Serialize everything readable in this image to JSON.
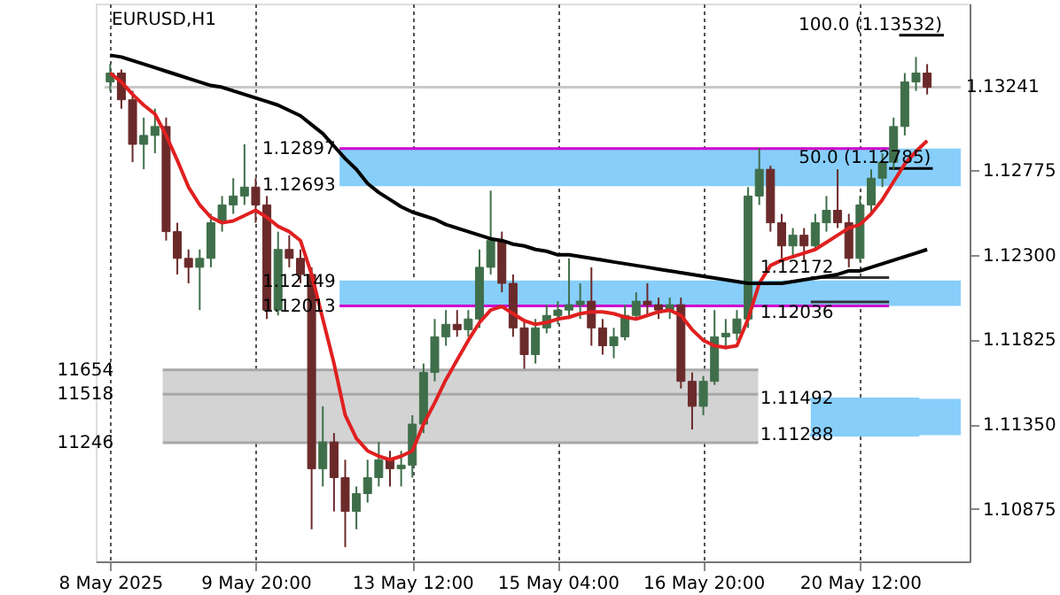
{
  "chart_data": {
    "type": "candlestick",
    "title": "EURUSD,H1",
    "categories": [
      "8 May 2025",
      null,
      null,
      null,
      null,
      null,
      null,
      null,
      null,
      null,
      null,
      null,
      null,
      "9 May 20:00",
      null,
      null,
      null,
      null,
      null,
      null,
      null,
      null,
      null,
      null,
      null,
      null,
      null,
      "13 May 12:00",
      null,
      null,
      null,
      null,
      null,
      null,
      null,
      null,
      null,
      null,
      null,
      null,
      "15 May 04:00",
      null,
      null,
      null,
      null,
      null,
      null,
      null,
      null,
      null,
      null,
      null,
      null,
      "16 May 20:00",
      null,
      null,
      null,
      null,
      null,
      null,
      null,
      null,
      null,
      null,
      null,
      null,
      null,
      "20 May 12:00",
      null,
      null,
      null,
      null,
      null,
      null
    ],
    "ylim": [
      1.1058,
      1.1371
    ],
    "yticks": [
      1.10875,
      {
        "value": 1.1135,
        "label": "1.11350"
      },
      1.11825,
      {
        "value": 1.123,
        "label": "1.12300"
      },
      1.12775
    ],
    "grid": "x",
    "marker": "none",
    "line_style": "solid",
    "colors": [
      "#3f6f4a",
      "#6b2a2a",
      "#6b2a2a",
      "#3f6f4a",
      "#3f6f4a",
      "#6b2a2a",
      "#6b2a2a",
      "#6b2a2a",
      "#3f6f4a",
      "#3f6f4a",
      "#3f6f4a",
      "#3f6f4a",
      "#3f6f4a",
      "#6b2a2a",
      "#6b2a2a",
      "#3f6f4a",
      "#6b2a2a",
      "#6b2a2a",
      "#6b2a2a",
      "#3f6f4a",
      "#6b2a2a",
      "#6b2a2a",
      "#3f6f4a",
      "#3f6f4a",
      "#3f6f4a",
      "#6b2a2a",
      "#3f6f4a",
      "#3f6f4a",
      "#3f6f4a",
      "#3f6f4a",
      "#3f6f4a",
      "#6b2a2a",
      "#3f6f4a",
      "#3f6f4a",
      "#3f6f4a",
      "#6b2a2a",
      "#6b2a2a",
      "#6b2a2a",
      "#3f6f4a",
      "#3f6f4a",
      "#3f6f4a",
      "#3f6f4a",
      "#3f6f4a",
      "#6b2a2a",
      "#6b2a2a",
      "#3f6f4a",
      "#3f6f4a",
      "#3f6f4a",
      "#6b2a2a",
      "#6b2a2a",
      "#3f6f4a",
      "#6b2a2a",
      "#6b2a2a",
      "#3f6f4a",
      "#3f6f4a",
      "#3f6f4a",
      "#3f6f4a",
      "#3f6f4a",
      "#3f6f4a",
      "#6b2a2a",
      "#6b2a2a",
      "#3f6f4a",
      "#6b2a2a",
      "#3f6f4a",
      "#3f6f4a",
      "#6b2a2a",
      "#6b2a2a",
      "#3f6f4a",
      "#3f6f4a",
      "#3f6f4a",
      "#3f6f4a",
      "#3f6f4a",
      "#3f6f4a",
      "#6b2a2a"
    ],
    "ohlc": [
      [
        1.1327,
        1.1337,
        1.1322,
        1.1332
      ],
      [
        1.1332,
        1.1334,
        1.1312,
        1.1317
      ],
      [
        1.1317,
        1.1322,
        1.1282,
        1.1292
      ],
      [
        1.1292,
        1.1307,
        1.1278,
        1.1297
      ],
      [
        1.1297,
        1.1312,
        1.1287,
        1.1302
      ],
      [
        1.1302,
        1.1307,
        1.1238,
        1.1243
      ],
      [
        1.1243,
        1.1248,
        1.1219,
        1.1228
      ],
      [
        1.1228,
        1.1233,
        1.1214,
        1.1223
      ],
      [
        1.1223,
        1.1233,
        1.1199,
        1.1228
      ],
      [
        1.1228,
        1.1253,
        1.1223,
        1.1248
      ],
      [
        1.1248,
        1.1263,
        1.1243,
        1.1258
      ],
      [
        1.1258,
        1.1273,
        1.1253,
        1.1263
      ],
      [
        1.1263,
        1.1292,
        1.1258,
        1.1268
      ],
      [
        1.1268,
        1.1273,
        1.1248,
        1.1258
      ],
      [
        1.1258,
        1.1263,
        1.1194,
        1.1199
      ],
      [
        1.1199,
        1.1243,
        1.1196,
        1.1233
      ],
      [
        1.1233,
        1.1241,
        1.1223,
        1.1228
      ],
      [
        1.1228,
        1.1233,
        1.1214,
        1.1219
      ],
      [
        1.1219,
        1.1223,
        1.1076,
        1.111
      ],
      [
        1.111,
        1.1145,
        1.11,
        1.1125
      ],
      [
        1.1125,
        1.113,
        1.1086,
        1.1105
      ],
      [
        1.1105,
        1.1115,
        1.1066,
        1.1086
      ],
      [
        1.1086,
        1.11,
        1.1076,
        1.1096
      ],
      [
        1.1096,
        1.1115,
        1.1091,
        1.1105
      ],
      [
        1.1105,
        1.1125,
        1.11,
        1.1115
      ],
      [
        1.1115,
        1.112,
        1.11,
        1.111
      ],
      [
        1.111,
        1.112,
        1.11,
        1.1112
      ],
      [
        1.1112,
        1.114,
        1.1105,
        1.1135
      ],
      [
        1.1135,
        1.1169,
        1.113,
        1.1164
      ],
      [
        1.1164,
        1.1194,
        1.1159,
        1.1184
      ],
      [
        1.1184,
        1.1199,
        1.1179,
        1.1191
      ],
      [
        1.1191,
        1.1199,
        1.1184,
        1.1188
      ],
      [
        1.1188,
        1.1199,
        1.1184,
        1.1194
      ],
      [
        1.1194,
        1.1233,
        1.1189,
        1.1223
      ],
      [
        1.1223,
        1.1266,
        1.1219,
        1.1238
      ],
      [
        1.1238,
        1.1243,
        1.1209,
        1.1214
      ],
      [
        1.1214,
        1.1219,
        1.1184,
        1.1189
      ],
      [
        1.1189,
        1.1194,
        1.1166,
        1.1174
      ],
      [
        1.1174,
        1.1194,
        1.1169,
        1.1189
      ],
      [
        1.1189,
        1.1202,
        1.1186,
        1.1196
      ],
      [
        1.1196,
        1.1204,
        1.1191,
        1.1199
      ],
      [
        1.1199,
        1.1228,
        1.1194,
        1.1202
      ],
      [
        1.1202,
        1.1214,
        1.1194,
        1.1204
      ],
      [
        1.1204,
        1.1223,
        1.1179,
        1.1189
      ],
      [
        1.1189,
        1.1194,
        1.1174,
        1.1179
      ],
      [
        1.1179,
        1.1189,
        1.1172,
        1.1184
      ],
      [
        1.1184,
        1.1202,
        1.1182,
        1.1196
      ],
      [
        1.1196,
        1.1209,
        1.1194,
        1.1204
      ],
      [
        1.1204,
        1.1214,
        1.1196,
        1.1202
      ],
      [
        1.1202,
        1.1206,
        1.1194,
        1.1199
      ],
      [
        1.1199,
        1.1206,
        1.1194,
        1.1202
      ],
      [
        1.1202,
        1.1206,
        1.1155,
        1.1159
      ],
      [
        1.1159,
        1.1164,
        1.1132,
        1.1145
      ],
      [
        1.1145,
        1.1162,
        1.114,
        1.1159
      ],
      [
        1.1159,
        1.1199,
        1.1157,
        1.1184
      ],
      [
        1.1184,
        1.1194,
        1.1177,
        1.1186
      ],
      [
        1.1186,
        1.1199,
        1.1182,
        1.1194
      ],
      [
        1.1194,
        1.1268,
        1.1189,
        1.1263
      ],
      [
        1.1263,
        1.129,
        1.1258,
        1.1278
      ],
      [
        1.1278,
        1.128,
        1.1243,
        1.1248
      ],
      [
        1.1248,
        1.1253,
        1.1228,
        1.1235
      ],
      [
        1.1235,
        1.1245,
        1.1228,
        1.1241
      ],
      [
        1.1241,
        1.1245,
        1.1226,
        1.1235
      ],
      [
        1.1235,
        1.1253,
        1.1233,
        1.1248
      ],
      [
        1.1248,
        1.1263,
        1.1243,
        1.1255
      ],
      [
        1.1255,
        1.1278,
        1.1245,
        1.1248
      ],
      [
        1.1248,
        1.1253,
        1.1223,
        1.1228
      ],
      [
        1.1228,
        1.1263,
        1.1226,
        1.1258
      ],
      [
        1.1258,
        1.1278,
        1.1253,
        1.1273
      ],
      [
        1.1273,
        1.1287,
        1.1268,
        1.1282
      ],
      [
        1.1282,
        1.1307,
        1.1278,
        1.1302
      ],
      [
        1.1302,
        1.1332,
        1.1297,
        1.1327
      ],
      [
        1.1327,
        1.1341,
        1.1322,
        1.1332
      ],
      [
        1.1332,
        1.1337,
        1.132,
        1.1324
      ]
    ],
    "series": [
      {
        "type": "line",
        "color": "#e02020",
        "values": [
          1.1332,
          1.1327,
          1.132,
          1.1314,
          1.1309,
          1.1297,
          1.1283,
          1.1268,
          1.1258,
          1.1251,
          1.1248,
          1.1249,
          1.1252,
          1.1255,
          1.1251,
          1.1246,
          1.1243,
          1.1238,
          1.1219,
          1.1194,
          1.1169,
          1.114,
          1.1127,
          1.112,
          1.1117,
          1.1115,
          1.1117,
          1.112,
          1.1135,
          1.1147,
          1.116,
          1.1171,
          1.1182,
          1.1192,
          1.1199,
          1.1201,
          1.1197,
          1.1193,
          1.1191,
          1.1192,
          1.1194,
          1.1195,
          1.1197,
          1.1198,
          1.1198,
          1.1197,
          1.1195,
          1.1194,
          1.1196,
          1.1198,
          1.1199,
          1.1196,
          1.1188,
          1.1182,
          1.1179,
          1.1178,
          1.1179,
          1.1194,
          1.1214,
          1.1224,
          1.1227,
          1.1229,
          1.1231,
          1.1233,
          1.1237,
          1.1241,
          1.1245,
          1.1247,
          1.1253,
          1.1261,
          1.1271,
          1.1281,
          1.1288,
          1.1294
        ]
      },
      {
        "type": "line",
        "color": "#000000",
        "values": [
          1.1342,
          1.1341,
          1.1339,
          1.1337,
          1.1335,
          1.1333,
          1.1331,
          1.1329,
          1.1327,
          1.1325,
          1.1324,
          1.1322,
          1.132,
          1.1318,
          1.1316,
          1.1314,
          1.1311,
          1.1308,
          1.1303,
          1.1298,
          1.1291,
          1.1284,
          1.1278,
          1.127,
          1.1265,
          1.1261,
          1.1257,
          1.1254,
          1.1252,
          1.125,
          1.1247,
          1.1245,
          1.1243,
          1.1241,
          1.1239,
          1.1238,
          1.1236,
          1.1235,
          1.1233,
          1.1232,
          1.123,
          1.123,
          1.1229,
          1.1228,
          1.1227,
          1.1226,
          1.1225,
          1.1224,
          1.1223,
          1.1222,
          1.1221,
          1.122,
          1.1219,
          1.1218,
          1.1217,
          1.1216,
          1.1215,
          1.1214,
          1.1214,
          1.1214,
          1.1214,
          1.1215,
          1.1216,
          1.1217,
          1.1218,
          1.1219,
          1.1221,
          1.1221,
          1.1223,
          1.1225,
          1.1227,
          1.1229,
          1.1231,
          1.1233
        ]
      }
    ],
    "bands": [
      {
        "axis": "y",
        "from": 1.12693,
        "to": 1.12897,
        "color": "#87cefa"
      },
      {
        "axis": "y",
        "from": 1.12013,
        "to": 1.12149,
        "color": "#87cefa"
      },
      {
        "axis": "y",
        "from": 1.11246,
        "to": 1.11654,
        "color": "#d3d3d3"
      },
      {
        "axis": "y",
        "from": 1.11288,
        "to": 1.11492,
        "color": "#87cefa"
      }
    ],
    "ref_lines": [
      {
        "axis": "y",
        "value": 1.12897,
        "color": "#cc00cc",
        "label": "1.12897"
      },
      {
        "axis": "y",
        "value": 1.12013,
        "color": "#cc00cc",
        "label": "1.12013"
      },
      {
        "axis": "y",
        "value": 1.13241,
        "color": "#c8c8c8",
        "label": "1.13241"
      },
      {
        "axis": "y",
        "value": 1.12693,
        "color": "#87cefa",
        "label": "1.12693"
      },
      {
        "axis": "y",
        "value": 1.12149,
        "color": "#87cefa",
        "label": "1.12149"
      },
      {
        "axis": "y",
        "value": 1.11654,
        "color": "#a8a8a8"
      },
      {
        "axis": "y",
        "value": 1.11518,
        "color": "#a8a8a8"
      },
      {
        "axis": "y",
        "value": 1.11246,
        "color": "#a8a8a8"
      },
      {
        "axis": "y",
        "value": 1.12172,
        "color": "#333333",
        "label": "1.12172"
      },
      {
        "axis": "y",
        "value": 1.12036,
        "color": "#333333",
        "label": "1.12036"
      },
      {
        "axis": "y",
        "value": 1.11492,
        "color": "#87cefa",
        "label": "1.11492"
      },
      {
        "axis": "y",
        "value": 1.11288,
        "color": "#87cefa",
        "label": "1.11288"
      },
      {
        "axis": "y",
        "value": 1.12785,
        "color": "#000000",
        "label": "50.0 (1.12785)"
      },
      {
        "axis": "y",
        "value": 1.13532,
        "color": "#000000",
        "label": "100.0 (1.13532)"
      }
    ],
    "annotations": [
      "11654",
      "11518",
      "11246"
    ]
  }
}
